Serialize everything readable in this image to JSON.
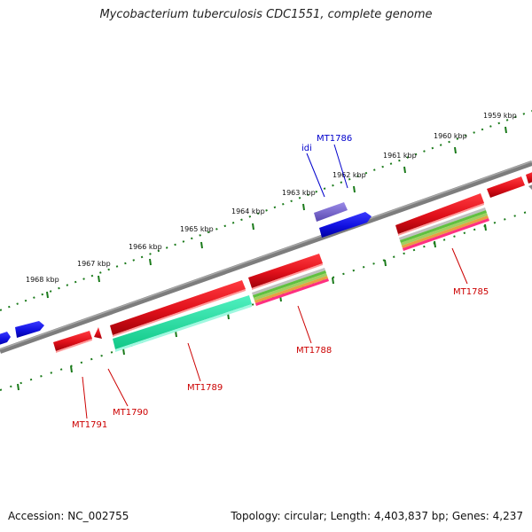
{
  "title": "Mycobacterium tuberculosis CDC1551, complete genome",
  "accession_text": "Accession: NC_002755",
  "topology_text": "Topology: circular; Length: 4,403,837 bp; Genes: 4,237",
  "colors": {
    "backbone": "#7d7d7d",
    "tick": "#1a7a1a",
    "gene_red": "#e0101a",
    "gene_blue": "#1010e0",
    "gene_violet": "#7060c8",
    "gene_teal": "#20e0a0",
    "label_red": "#cc0000",
    "label_blue": "#0000cc"
  },
  "kbp_labels": [
    "1959 kbp",
    "1960 kbp",
    "1961 kbp",
    "1962 kbp",
    "1963 kbp",
    "1964 kbp",
    "1965 kbp",
    "1966 kbp",
    "1967 kbp",
    "1968 kbp"
  ],
  "gene_labels": [
    {
      "text": "MT1785",
      "color": "red"
    },
    {
      "text": "MT1786",
      "color": "blue"
    },
    {
      "text": "idi",
      "color": "blue"
    },
    {
      "text": "MT1788",
      "color": "red"
    },
    {
      "text": "MT1789",
      "color": "red"
    },
    {
      "text": "MT1790",
      "color": "red"
    },
    {
      "text": "MT1791",
      "color": "red"
    }
  ]
}
